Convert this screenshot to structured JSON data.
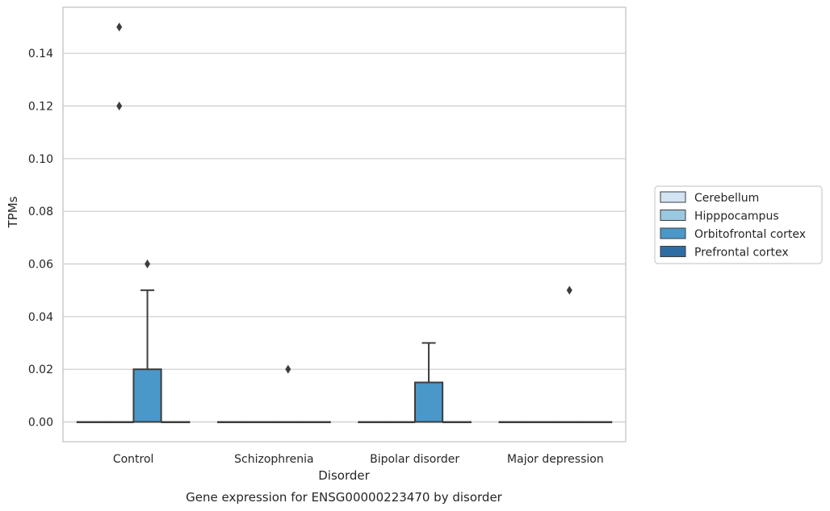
{
  "chart_data": {
    "type": "box",
    "title": "Gene expression for ENSG00000223470 by disorder",
    "xlabel": "Disorder",
    "ylabel": "TPMs",
    "ylim": [
      -0.0075,
      0.1575
    ],
    "yticks": [
      0.0,
      0.02,
      0.04,
      0.06,
      0.08,
      0.1,
      0.12,
      0.14
    ],
    "ytick_labels": [
      "0.00",
      "0.02",
      "0.04",
      "0.06",
      "0.08",
      "0.10",
      "0.12",
      "0.14"
    ],
    "grid": "horizontal",
    "legend_position": "right",
    "categories": [
      "Control",
      "Schizophrenia",
      "Bipolar disorder",
      "Major depression"
    ],
    "hue": [
      "Cerebellum",
      "Hipppocampus",
      "Orbitofrontal cortex",
      "Prefrontal cortex"
    ],
    "hue_colors": [
      "#d2e3f3",
      "#9ac8e0",
      "#4a98c9",
      "#2e6da4"
    ],
    "boxes": [
      {
        "category": "Control",
        "hue": "Cerebellum",
        "q1": 0,
        "median": 0,
        "q3": 0,
        "whisker_low": 0,
        "whisker_high": 0,
        "outliers": []
      },
      {
        "category": "Control",
        "hue": "Hipppocampus",
        "q1": 0,
        "median": 0,
        "q3": 0,
        "whisker_low": 0,
        "whisker_high": 0,
        "outliers": [
          0.15,
          0.12
        ]
      },
      {
        "category": "Control",
        "hue": "Orbitofrontal cortex",
        "q1": 0,
        "median": 0,
        "q3": 0.02,
        "whisker_low": 0,
        "whisker_high": 0.05,
        "outliers": [
          0.06
        ]
      },
      {
        "category": "Control",
        "hue": "Prefrontal cortex",
        "q1": 0,
        "median": 0,
        "q3": 0,
        "whisker_low": 0,
        "whisker_high": 0,
        "outliers": []
      },
      {
        "category": "Schizophrenia",
        "hue": "Cerebellum",
        "q1": 0,
        "median": 0,
        "q3": 0,
        "whisker_low": 0,
        "whisker_high": 0,
        "outliers": []
      },
      {
        "category": "Schizophrenia",
        "hue": "Hipppocampus",
        "q1": 0,
        "median": 0,
        "q3": 0,
        "whisker_low": 0,
        "whisker_high": 0,
        "outliers": []
      },
      {
        "category": "Schizophrenia",
        "hue": "Orbitofrontal cortex",
        "q1": 0,
        "median": 0,
        "q3": 0,
        "whisker_low": 0,
        "whisker_high": 0,
        "outliers": [
          0.02
        ]
      },
      {
        "category": "Schizophrenia",
        "hue": "Prefrontal cortex",
        "q1": 0,
        "median": 0,
        "q3": 0,
        "whisker_low": 0,
        "whisker_high": 0,
        "outliers": []
      },
      {
        "category": "Bipolar disorder",
        "hue": "Cerebellum",
        "q1": 0,
        "median": 0,
        "q3": 0,
        "whisker_low": 0,
        "whisker_high": 0,
        "outliers": []
      },
      {
        "category": "Bipolar disorder",
        "hue": "Hipppocampus",
        "q1": 0,
        "median": 0,
        "q3": 0,
        "whisker_low": 0,
        "whisker_high": 0,
        "outliers": []
      },
      {
        "category": "Bipolar disorder",
        "hue": "Orbitofrontal cortex",
        "q1": 0,
        "median": 0,
        "q3": 0.015,
        "whisker_low": 0,
        "whisker_high": 0.03,
        "outliers": []
      },
      {
        "category": "Bipolar disorder",
        "hue": "Prefrontal cortex",
        "q1": 0,
        "median": 0,
        "q3": 0,
        "whisker_low": 0,
        "whisker_high": 0,
        "outliers": []
      },
      {
        "category": "Major depression",
        "hue": "Cerebellum",
        "q1": 0,
        "median": 0,
        "q3": 0,
        "whisker_low": 0,
        "whisker_high": 0,
        "outliers": []
      },
      {
        "category": "Major depression",
        "hue": "Hipppocampus",
        "q1": 0,
        "median": 0,
        "q3": 0,
        "whisker_low": 0,
        "whisker_high": 0,
        "outliers": []
      },
      {
        "category": "Major depression",
        "hue": "Orbitofrontal cortex",
        "q1": 0,
        "median": 0,
        "q3": 0,
        "whisker_low": 0,
        "whisker_high": 0,
        "outliers": [
          0.05
        ]
      },
      {
        "category": "Major depression",
        "hue": "Prefrontal cortex",
        "q1": 0,
        "median": 0,
        "q3": 0,
        "whisker_low": 0,
        "whisker_high": 0,
        "outliers": []
      }
    ]
  }
}
